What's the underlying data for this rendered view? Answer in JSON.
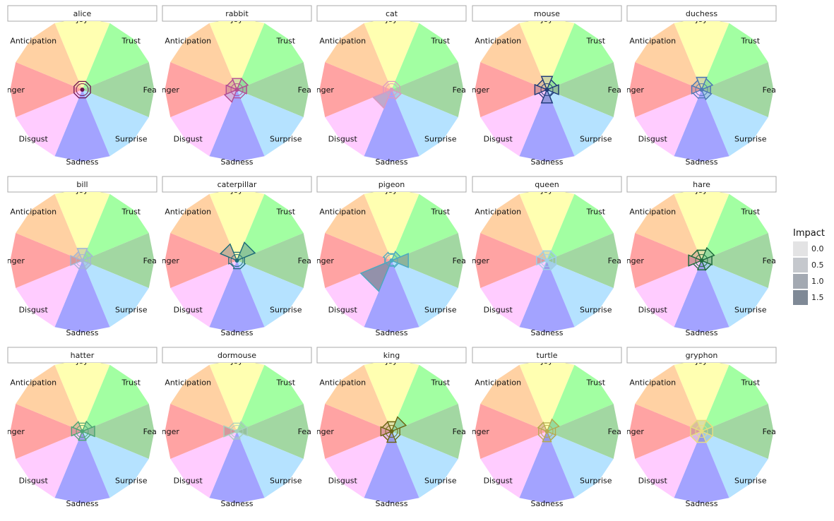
{
  "chart_data": {
    "type": "radar",
    "emotions": [
      "Joy",
      "Trust",
      "Fear",
      "Surprise",
      "Sadness",
      "Disgust",
      "Anger",
      "Anticipation"
    ],
    "emotion_colors": [
      "#ffffb1",
      "#a2ffa2",
      "#a2d7a2",
      "#b5e2ff",
      "#a3a3ff",
      "#ffccff",
      "#ffa3a3",
      "#ffd1a3"
    ],
    "legend": {
      "title": "Impact",
      "levels": [
        {
          "label": "0.0",
          "color": "#e3e3e4"
        },
        {
          "label": "0.5",
          "color": "#c5c8cd"
        },
        {
          "label": "1.0",
          "color": "#a3a9b2"
        },
        {
          "label": "1.5",
          "color": "#7f8996"
        }
      ]
    },
    "panels": [
      {
        "name": "alice",
        "color": "#6b0f4f",
        "values": [
          0.6,
          0.6,
          0.6,
          0.6,
          0.6,
          0.6,
          0.6,
          0.6
        ]
      },
      {
        "name": "rabbit",
        "color": "#b44b93",
        "values": [
          0.82,
          0.8,
          0.7,
          0.62,
          0.6,
          0.9,
          0.78,
          0.72
        ]
      },
      {
        "name": "cat",
        "color": "#dd99c0",
        "values": [
          0.6,
          0.6,
          0.6,
          0.7,
          0.6,
          1.35,
          0.6,
          0.6
        ]
      },
      {
        "name": "mouse",
        "color": "#1f3a78",
        "values": [
          0.97,
          0.72,
          0.85,
          0.5,
          0.97,
          0.6,
          0.88,
          0.72
        ]
      },
      {
        "name": "duchess",
        "color": "#4e78b5",
        "values": [
          0.9,
          0.8,
          0.65,
          0.72,
          0.6,
          0.62,
          0.72,
          0.68
        ]
      },
      {
        "name": "bill",
        "color": "#a5b6d6",
        "values": [
          0.88,
          0.75,
          0.6,
          0.65,
          0.55,
          0.6,
          0.85,
          0.65
        ]
      },
      {
        "name": "caterpillar",
        "color": "#1d6b78",
        "values": [
          0.6,
          1.32,
          0.55,
          0.6,
          0.6,
          0.5,
          0.6,
          1.2
        ]
      },
      {
        "name": "pigeon",
        "color": "#4aaac2",
        "values": [
          0.5,
          0.65,
          1.22,
          0.5,
          0.35,
          2.25,
          0.5,
          0.6
        ]
      },
      {
        "name": "queen",
        "color": "#9fd1e8",
        "values": [
          0.7,
          0.68,
          0.65,
          0.68,
          0.65,
          0.6,
          0.75,
          0.65
        ]
      },
      {
        "name": "hare",
        "color": "#1f6b3c",
        "values": [
          0.75,
          0.92,
          0.75,
          0.7,
          0.68,
          0.6,
          0.95,
          0.75
        ]
      },
      {
        "name": "hatter",
        "color": "#4ea674",
        "values": [
          0.6,
          0.72,
          0.9,
          0.6,
          0.65,
          0.6,
          0.78,
          0.7
        ]
      },
      {
        "name": "dormouse",
        "color": "#a8d2bd",
        "values": [
          0.6,
          0.7,
          0.75,
          0.45,
          0.55,
          0.6,
          0.95,
          0.6
        ]
      },
      {
        "name": "king",
        "color": "#6b6612",
        "values": [
          0.7,
          1.05,
          0.6,
          0.62,
          0.8,
          0.65,
          0.78,
          0.68
        ]
      },
      {
        "name": "turtle",
        "color": "#b5aa4e",
        "values": [
          0.62,
          0.88,
          0.62,
          0.65,
          0.75,
          0.62,
          0.6,
          0.65
        ]
      },
      {
        "name": "gryphon",
        "color": "#e8df80",
        "values": [
          0.8,
          0.8,
          0.8,
          0.8,
          0.8,
          0.8,
          0.8,
          0.8
        ]
      }
    ]
  }
}
